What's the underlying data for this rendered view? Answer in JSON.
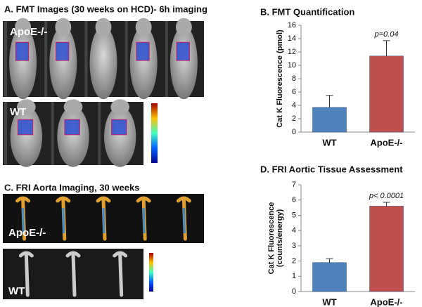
{
  "figure": {
    "panel_a": {
      "title": "A.  FMT Images (30 weeks on HCD)- 6h imaging",
      "row_labels": [
        "ApoE-/-",
        "WT"
      ]
    },
    "panel_c": {
      "title": "C.  FRI Aorta Imaging, 30 weeks",
      "row_labels": [
        "ApoE-/-",
        "WT"
      ]
    }
  },
  "chart_data": [
    {
      "type": "bar",
      "title": "B.  FMT Quantification",
      "ylabel": "Cat K Fluorescence (pmol)",
      "categories": [
        "WT",
        "ApoE-/-"
      ],
      "values": [
        3.7,
        11.4
      ],
      "errors": [
        1.8,
        2.3
      ],
      "colors": [
        "#4f81bd",
        "#c0504d"
      ],
      "annotation": "p=0.04",
      "ylim": [
        0,
        16
      ],
      "yticks": [
        0,
        2,
        4,
        6,
        8,
        10,
        12,
        14,
        16
      ]
    },
    {
      "type": "bar",
      "title": "D.  FRI Aortic Tissue Assessment",
      "ylabel": [
        "Cat K Fluorescence",
        "(counts/energy)"
      ],
      "categories": [
        "WT",
        "ApoE-/-"
      ],
      "values": [
        1.9,
        5.6
      ],
      "errors": [
        0.25,
        0.25
      ],
      "colors": [
        "#4f81bd",
        "#c0504d"
      ],
      "annotation": "p< 0.0001",
      "ylim": [
        0,
        7
      ],
      "yticks": [
        0,
        1,
        2,
        3,
        4,
        5,
        6,
        7
      ]
    }
  ]
}
